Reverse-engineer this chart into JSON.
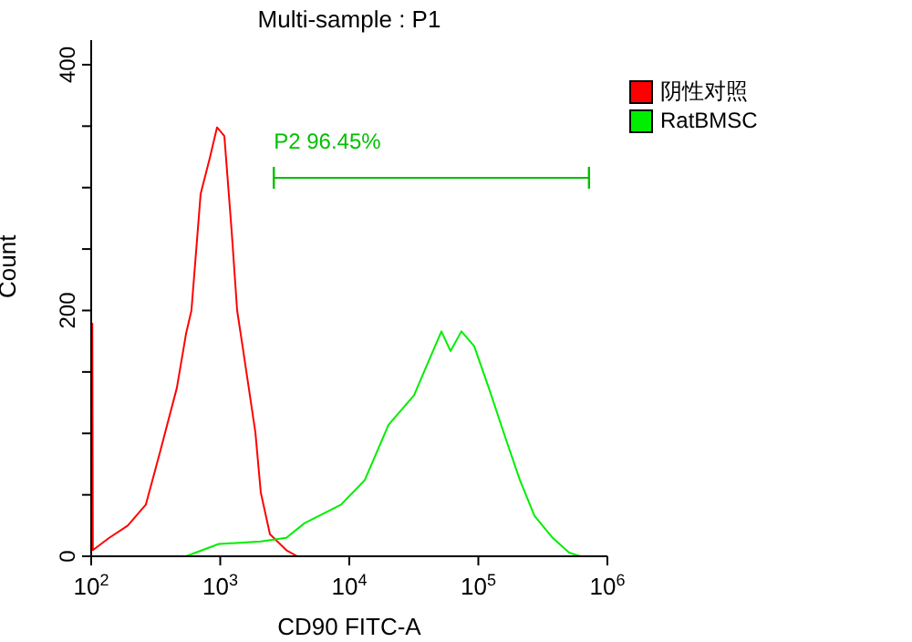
{
  "chart_data": {
    "type": "line",
    "title": "Multi-sample : P1",
    "xlabel": "CD90 FITC-A",
    "ylabel": "Count",
    "log": "x",
    "xlim": [
      100,
      1000000
    ],
    "xticks": [
      {
        "value": 100,
        "label": "10$^{2}$"
      },
      {
        "value": 1000,
        "label": "10$^{3}$"
      },
      {
        "value": 10000,
        "label": "10$^{4}$"
      },
      {
        "value": 100000,
        "label": "10$^{5}$"
      },
      {
        "value": 1000000,
        "label": "10$^{6}$"
      }
    ],
    "ylim": [
      0,
      420
    ],
    "yticks": [
      0,
      {
        "value": 50,
        "label": null
      },
      {
        "value": 100,
        "label": null
      },
      {
        "value": 150,
        "label": null
      },
      200,
      {
        "value": 250,
        "label": null
      },
      {
        "value": 300,
        "label": null
      },
      {
        "value": 350,
        "label": null
      },
      400
    ],
    "grid": false,
    "legend": "top right",
    "marker": "none",
    "series": [
      {
        "name": "阴性对照",
        "color": "#ff0000",
        "x": [
          102,
          103,
          138,
          192,
          265,
          344,
          461,
          543,
          598,
          705,
          830,
          944,
          1076,
          1225,
          1352,
          1489,
          1871,
          2061,
          2427,
          3251,
          3954
        ],
        "values": [
          190,
          5,
          15,
          25,
          42,
          86,
          137,
          181,
          200,
          295,
          324,
          349,
          342,
          265,
          200,
          171,
          101,
          52,
          18,
          5,
          0
        ]
      },
      {
        "name": "RatBMSC",
        "color": "#00ee00",
        "x": [
          543,
          975,
          2061,
          3251,
          4508,
          8630,
          13183,
          20137,
          31769,
          38637,
          51761,
          60814,
          73961,
          92897,
          120504,
          161436,
          209894,
          272270,
          376704,
          504661,
          613762
        ],
        "values": [
          0,
          10,
          12,
          15,
          27,
          42,
          62,
          107,
          131,
          152,
          183,
          167,
          183,
          171,
          137,
          97,
          62,
          33,
          15,
          3,
          0
        ]
      },
      {
        "color": "#00c000",
        "x": [
          2600,
          720000
        ],
        "values": [
          308,
          308
        ]
      }
    ],
    "annotations": [
      {
        "text": "P2 96.45%",
        "x": 2600,
        "y": 308
      }
    ]
  }
}
